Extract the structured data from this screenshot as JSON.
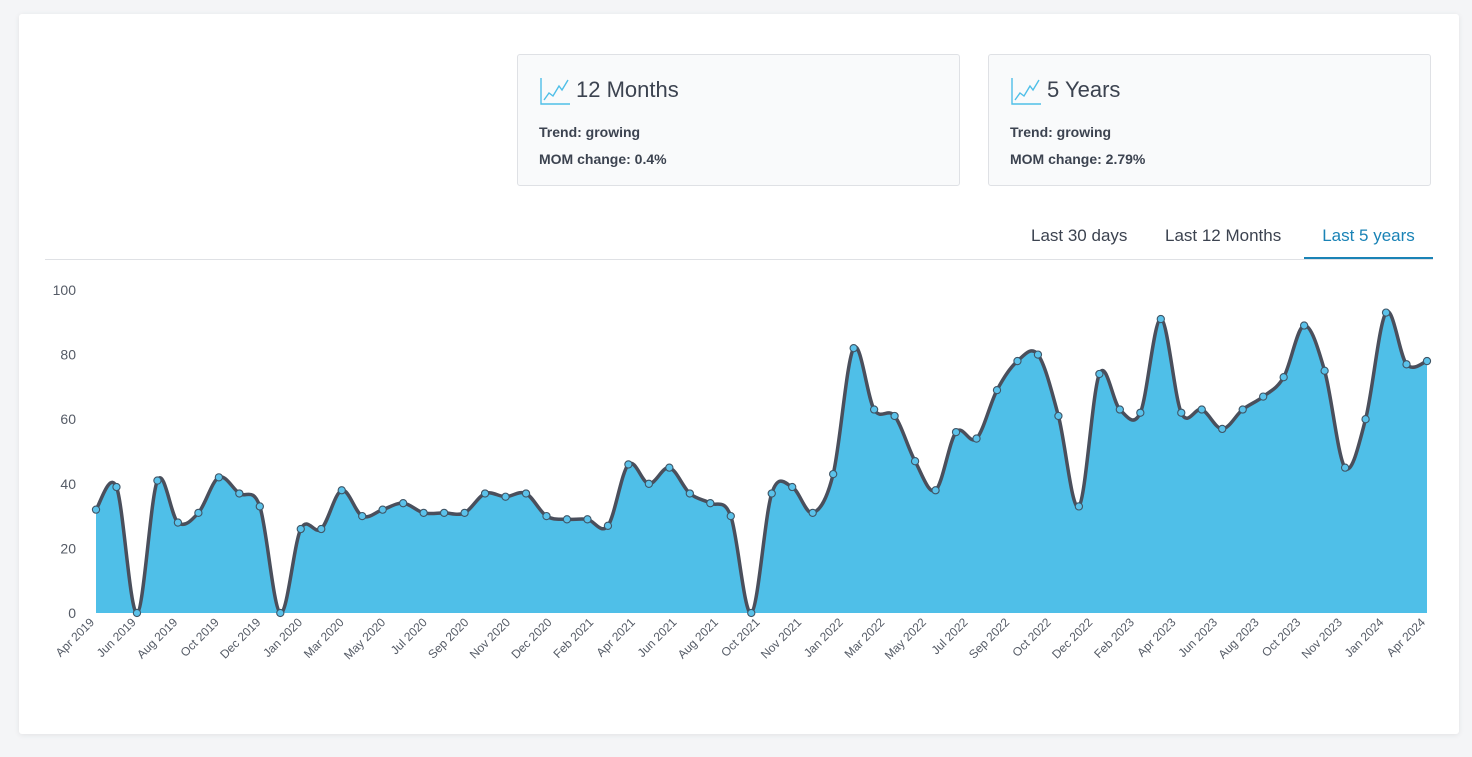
{
  "cards": [
    {
      "title": "12 Months",
      "trend_label": "Trend:",
      "trend_value": "growing",
      "mom_label": "MOM change:",
      "mom_value": "0.4%",
      "icon": "line-chart-icon"
    },
    {
      "title": "5 Years",
      "trend_label": "Trend:",
      "trend_value": "growing",
      "mom_label": "MOM change:",
      "mom_value": "2.79%",
      "icon": "line-chart-icon"
    }
  ],
  "tabs": [
    {
      "label": "Last 30 days",
      "active": false
    },
    {
      "label": "Last 12 Months",
      "active": false
    },
    {
      "label": "Last 5 years",
      "active": true
    }
  ],
  "colors": {
    "fill": "#4fbfe8",
    "line": "#4a4f5c",
    "marker": "#5bc2ea",
    "accent": "#1a83b6"
  },
  "chart_data": {
    "type": "area",
    "title": "",
    "xlabel": "",
    "ylabel": "",
    "ylim": [
      0,
      100
    ],
    "yticks": [
      0,
      20,
      40,
      60,
      80,
      100
    ],
    "grid": false,
    "x_tick_labels": [
      "Apr 2019",
      "Jun 2019",
      "Aug 2019",
      "Oct 2019",
      "Dec 2019",
      "Jan 2020",
      "Mar 2020",
      "May 2020",
      "Jul 2020",
      "Sep 2020",
      "Nov 2020",
      "Dec 2020",
      "Feb 2021",
      "Apr 2021",
      "Jun 2021",
      "Aug 2021",
      "Oct 2021",
      "Nov 2021",
      "Jan 2022",
      "Mar 2022",
      "May 2022",
      "Jul 2022",
      "Sep 2022",
      "Oct 2022",
      "Dec 2022",
      "Feb 2023",
      "Apr 2023",
      "Jun 2023",
      "Aug 2023",
      "Oct 2023",
      "Nov 2023",
      "Jan 2024",
      "Apr 2024"
    ],
    "series": [
      {
        "values": [
          32,
          39,
          0,
          41,
          28,
          31,
          42,
          37,
          33,
          0,
          26,
          26,
          38,
          30,
          32,
          34,
          31,
          31,
          31,
          37,
          36,
          37,
          30,
          29,
          29,
          27,
          46,
          40,
          45,
          37,
          34,
          30,
          0,
          37,
          39,
          31,
          43,
          82,
          63,
          61,
          47,
          38,
          56,
          54,
          69,
          78,
          80,
          61,
          33,
          74,
          63,
          62,
          91,
          62,
          63,
          57,
          63,
          67,
          73,
          89,
          75,
          45,
          60,
          93,
          77,
          78
        ]
      }
    ]
  }
}
